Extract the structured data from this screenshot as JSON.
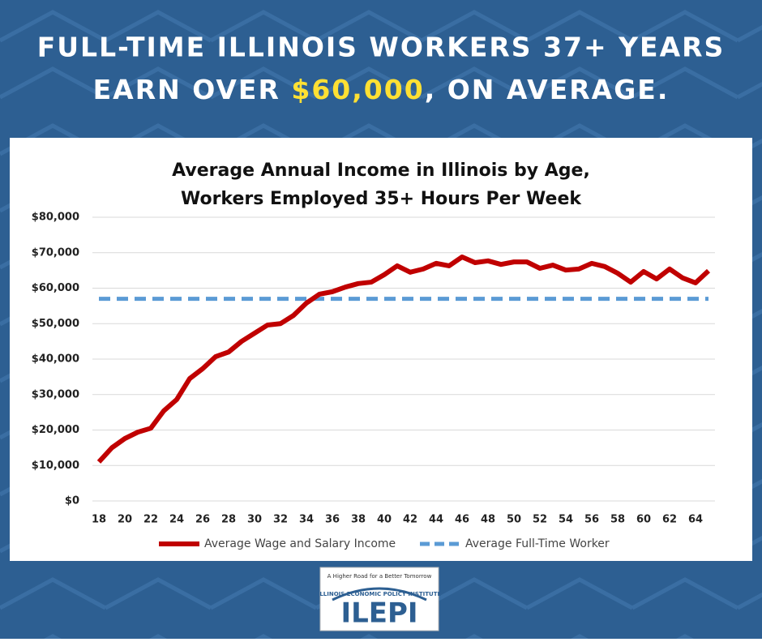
{
  "header": {
    "line1": "FULL-TIME ILLINOIS WORKERS 37+ YEARS",
    "line2_start": "EARN OVER ",
    "line2_highlight": "$60,000",
    "line2_end": ", ON AVERAGE."
  },
  "logo": {
    "tagline": "A Higher Road for a Better Tomorrow",
    "institute": "ILLINOIS ECONOMIC POLICY INSTITUTE",
    "acronym": "ILEPI"
  },
  "chart_data": {
    "type": "line",
    "title": [
      "Average Annual Income in Illinois by Age,",
      "Workers Employed 35+ Hours Per Week"
    ],
    "x": [
      18,
      19,
      20,
      21,
      22,
      23,
      24,
      25,
      26,
      27,
      28,
      29,
      30,
      31,
      32,
      33,
      34,
      35,
      36,
      37,
      38,
      39,
      40,
      41,
      42,
      43,
      44,
      45,
      46,
      47,
      48,
      49,
      50,
      51,
      52,
      53,
      54,
      55,
      56,
      57,
      58,
      59,
      60,
      61,
      62,
      63,
      64,
      65
    ],
    "series": [
      {
        "name": "Average Wage and Salary Income",
        "color": "#c00000",
        "dashed": false,
        "values": [
          11000,
          15000,
          17600,
          19400,
          20500,
          25400,
          28600,
          34500,
          37300,
          40700,
          42000,
          45000,
          47300,
          49600,
          50000,
          52300,
          55800,
          58300,
          59000,
          60300,
          61300,
          61700,
          63800,
          66300,
          64500,
          65400,
          67000,
          66300,
          68800,
          67200,
          67700,
          66700,
          67400,
          67400,
          65600,
          66500,
          65100,
          65400,
          67000,
          66100,
          64200,
          61700,
          64700,
          62600,
          65400,
          62900,
          61500,
          64900
        ]
      },
      {
        "name": "Average Full-Time Worker",
        "color": "#5b9bd5",
        "dashed": true,
        "values": [
          57000,
          57000,
          57000,
          57000,
          57000,
          57000,
          57000,
          57000,
          57000,
          57000,
          57000,
          57000,
          57000,
          57000,
          57000,
          57000,
          57000,
          57000,
          57000,
          57000,
          57000,
          57000,
          57000,
          57000,
          57000,
          57000,
          57000,
          57000,
          57000,
          57000,
          57000,
          57000,
          57000,
          57000,
          57000,
          57000,
          57000,
          57000,
          57000,
          57000,
          57000,
          57000,
          57000,
          57000,
          57000,
          57000,
          57000,
          57000
        ]
      }
    ],
    "xlim": [
      17.5,
      65.5
    ],
    "xticks": [
      18,
      20,
      22,
      24,
      26,
      28,
      30,
      32,
      34,
      36,
      38,
      40,
      42,
      44,
      46,
      48,
      50,
      52,
      54,
      56,
      58,
      60,
      62,
      64
    ],
    "ylim": [
      0,
      80000
    ],
    "yticks": [
      {
        "value": 0,
        "label": "$0"
      },
      {
        "value": 10000,
        "label": "$10,000"
      },
      {
        "value": 20000,
        "label": "$20,000"
      },
      {
        "value": 30000,
        "label": "$30,000"
      },
      {
        "value": 40000,
        "label": "$40,000"
      },
      {
        "value": 50000,
        "label": "$50,000"
      },
      {
        "value": 60000,
        "label": "$60,000"
      },
      {
        "value": 70000,
        "label": "$70,000"
      },
      {
        "value": 80000,
        "label": "$80,000"
      }
    ],
    "grid": true,
    "legend": "bottom"
  }
}
